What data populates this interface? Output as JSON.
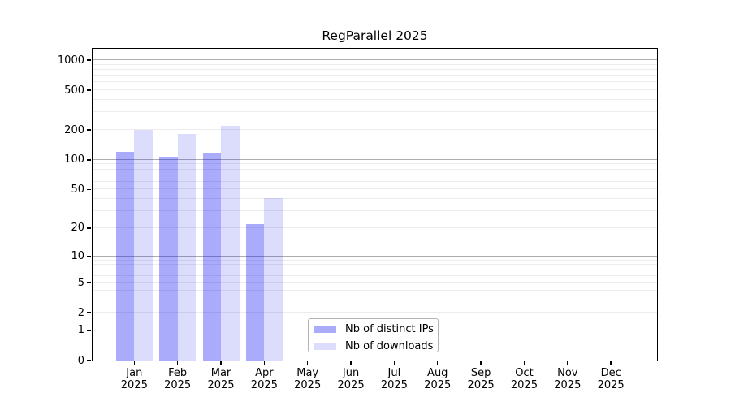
{
  "chart_data": {
    "type": "bar",
    "title": "RegParallel 2025",
    "categories": [
      "Jan 2025",
      "Feb 2025",
      "Mar 2025",
      "Apr 2025",
      "May 2025",
      "Jun 2025",
      "Jul 2025",
      "Aug 2025",
      "Sep 2025",
      "Oct 2025",
      "Nov 2025",
      "Dec 2025"
    ],
    "series": [
      {
        "name": "Nb of distinct IPs",
        "color": "rgba(15,15,243,0.35)",
        "color_on_white": "#abaaf8",
        "values": [
          120,
          107,
          115,
          22,
          0,
          0,
          0,
          0,
          0,
          0,
          0,
          0
        ]
      },
      {
        "name": "Nb of downloads",
        "color": "rgba(15,15,243,0.145)",
        "color_on_white": "#dcdcf9",
        "values": [
          199,
          183,
          219,
          41,
          0,
          0,
          0,
          0,
          0,
          0,
          0,
          0
        ]
      }
    ],
    "xlabel": "",
    "ylabel": "",
    "yscale": "log10(1+y)",
    "ylim": [
      0,
      1300
    ],
    "yticks": [
      0,
      1,
      2,
      5,
      10,
      20,
      50,
      100,
      200,
      500,
      1000
    ],
    "major_grid_values": [
      1,
      10,
      100,
      1000
    ],
    "minor_grid_values": [
      2,
      3,
      4,
      5,
      6,
      7,
      8,
      9,
      20,
      30,
      40,
      50,
      60,
      70,
      80,
      90,
      200,
      300,
      400,
      500,
      600,
      700,
      800,
      900
    ],
    "grid": "on",
    "legend_position": "lower center, inside plot"
  },
  "colors": {
    "bar_distinct_ips": "#abaaf8",
    "bar_downloads": "#dcdcf9",
    "grid_major": "#adadad",
    "grid_minor": "#ececec",
    "axis": "#000000",
    "legend_border": "#b3b3b3",
    "background": "#ffffff"
  }
}
